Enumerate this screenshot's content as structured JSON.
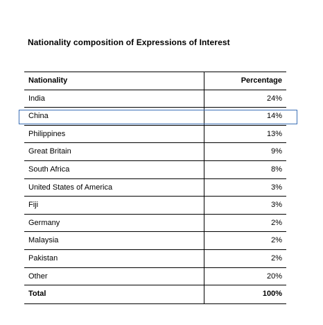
{
  "title": "Nationality composition of Expressions of Interest",
  "columns": {
    "nationality": "Nationality",
    "percentage": "Percentage"
  },
  "rows": [
    {
      "nationality": "India",
      "percentage": "24%"
    },
    {
      "nationality": "China",
      "percentage": "14%"
    },
    {
      "nationality": "Philippines",
      "percentage": "13%"
    },
    {
      "nationality": "Great Britain",
      "percentage": "9%"
    },
    {
      "nationality": "South Africa",
      "percentage": "8%"
    },
    {
      "nationality": "United States of America",
      "percentage": "3%"
    },
    {
      "nationality": "Fiji",
      "percentage": "3%"
    },
    {
      "nationality": "Germany",
      "percentage": "2%"
    },
    {
      "nationality": "Malaysia",
      "percentage": "2%"
    },
    {
      "nationality": "Pakistan",
      "percentage": "2%"
    },
    {
      "nationality": "Other",
      "percentage": "20%"
    }
  ],
  "total": {
    "nationality": "Total",
    "percentage": "100%"
  },
  "selected_row": "China",
  "colors": {
    "selection_border": "#3b6fb6"
  }
}
